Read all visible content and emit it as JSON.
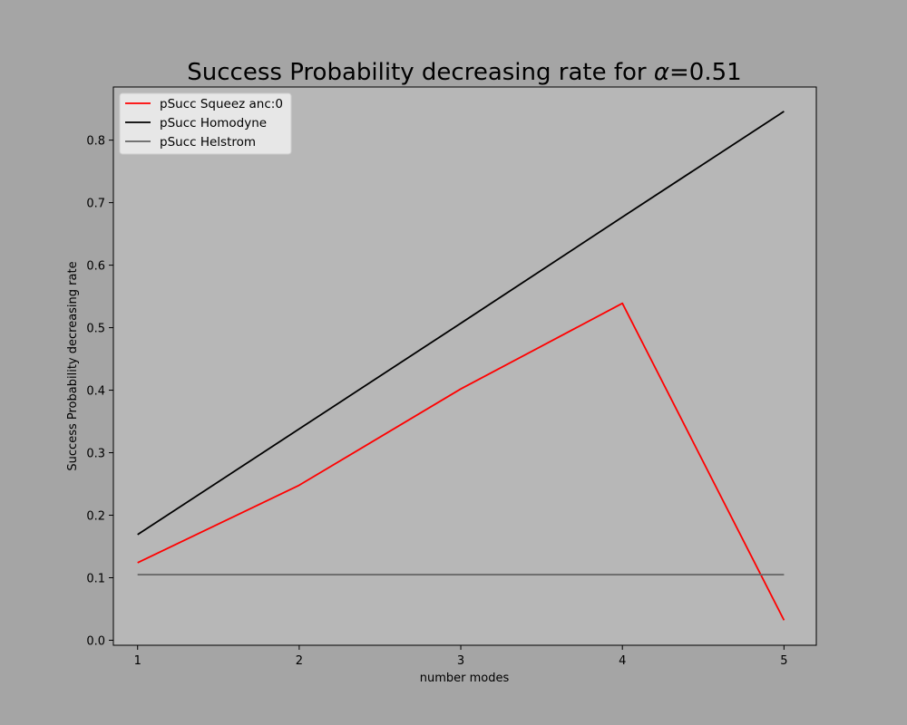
{
  "chart_data": {
    "type": "line",
    "title_prefix": "Success Probability decreasing rate for ",
    "title_alpha": "α",
    "title_suffix": "=0.51",
    "xlabel": "number modes",
    "ylabel": "Success Probability decreasing rate",
    "x": [
      1,
      2,
      3,
      4,
      5
    ],
    "xticks": [
      "1",
      "2",
      "3",
      "4",
      "5"
    ],
    "yticks": [
      "0.0",
      "0.1",
      "0.2",
      "0.3",
      "0.4",
      "0.5",
      "0.6",
      "0.7",
      "0.8"
    ],
    "xlim": [
      0.85,
      5.2
    ],
    "ylim": [
      -0.008,
      0.885
    ],
    "grid": false,
    "legend_position": "upper-left",
    "series": [
      {
        "name": "pSucc Squeez anc:0",
        "color": "#ff0000",
        "values": [
          0.124,
          0.248,
          0.402,
          0.539,
          0.032
        ]
      },
      {
        "name": "pSucc Homodyne",
        "color": "#000000",
        "values": [
          0.169,
          0.338,
          0.507,
          0.677,
          0.846
        ]
      },
      {
        "name": "pSucc Helstrom",
        "color": "#646464",
        "values": [
          0.105,
          0.105,
          0.105,
          0.105,
          0.105
        ]
      }
    ],
    "colors": {
      "figure_background": "#a5a5a5",
      "axes_background": "#b7b7b7",
      "legend_background": "#f0f0f0"
    }
  }
}
